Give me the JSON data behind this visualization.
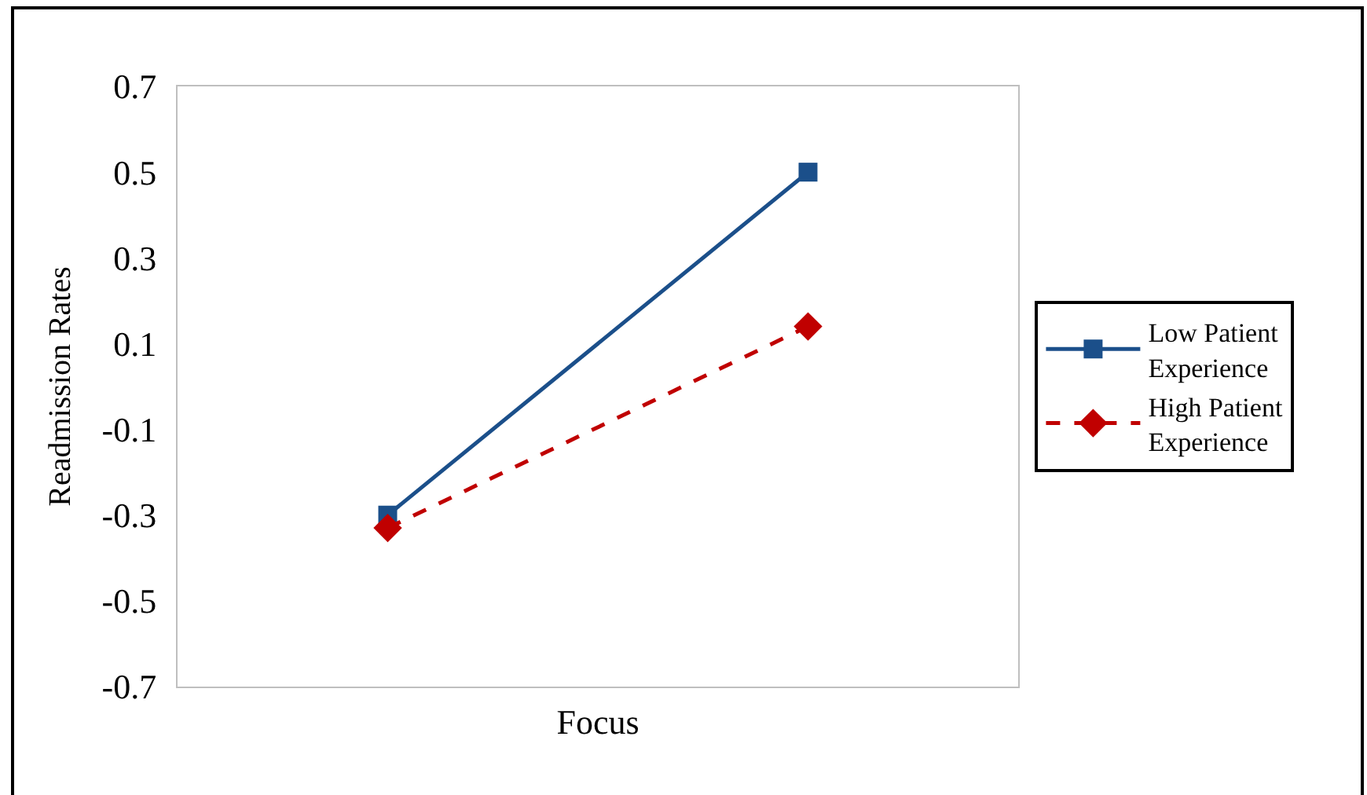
{
  "chart_data": {
    "type": "line",
    "xlabel": "Focus",
    "ylabel": "Readmission Rates",
    "categories": [
      null,
      null
    ],
    "series": [
      {
        "name": "Low Patient Experience",
        "color": "#1b4f8a",
        "values": [
          -0.3,
          0.5
        ],
        "marker": "square",
        "line_style": "solid"
      },
      {
        "name": "High Patient Experience",
        "color": "#c00000",
        "values": [
          -0.33,
          0.14
        ],
        "marker": "diamond",
        "line_style": "dashed"
      }
    ],
    "ylim": [
      -0.7,
      0.7
    ],
    "yticks": [
      -0.7,
      -0.5,
      -0.3,
      -0.1,
      0.1,
      0.3,
      0.5,
      0.7
    ],
    "grid": false,
    "legend": "right"
  }
}
